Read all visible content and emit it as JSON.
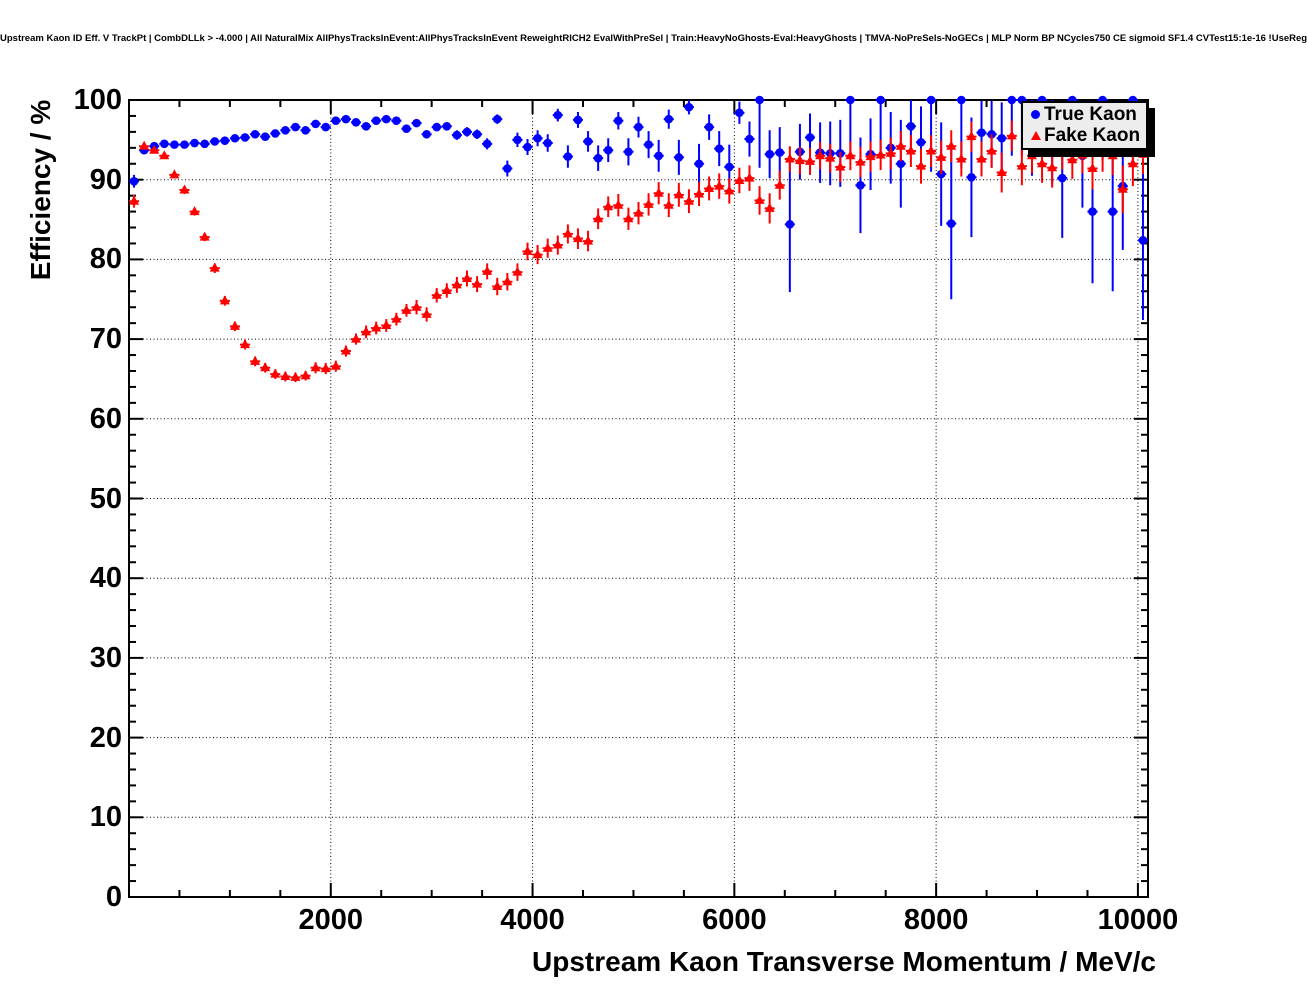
{
  "title": "Upstream Kaon ID Eff. V TrackPt | CombDLLk > -4.000 | All NaturalMix AllPhysTracksInEvent:AllPhysTracksInEvent ReweightRICH2 EvalWithPreSel | Train:HeavyNoGhosts-Eval:HeavyGhosts | TMVA-NoPreSels-NoGECs | MLP Norm BP NCycles750 CE sigmoid SF1.4 CVTest15:1e-16 !UseReg",
  "legend": {
    "items": [
      {
        "label": "True Kaon",
        "marker": "circle",
        "color": "#0000ff"
      },
      {
        "label": "Fake Kaon",
        "marker": "triangle",
        "color": "#ff0000"
      }
    ]
  },
  "colors": {
    "true_kaon": "#0000ff",
    "fake_kaon": "#ff0000",
    "axis": "#000000",
    "legend_bg": "#ededed"
  },
  "chart_data": {
    "type": "scatter",
    "title": "Upstream Kaon ID Eff. V TrackPt | CombDLLk > -4.000 | All NaturalMix AllPhysTracksInEvent:AllPhysTracksInEvent ReweightRICH2 EvalWithPreSel | Train:HeavyNoGhosts-Eval:HeavyGhosts | TMVA-NoPreSels-NoGECs | MLP Norm BP NCycles750 CE sigmoid SF1.4 CVTest15:1e-16 !UseReg",
    "xlabel": "Upstream Kaon Transverse Momentum / MeV/c",
    "ylabel": "Efficiency / %",
    "xlim": [
      0,
      10100
    ],
    "ylim": [
      0,
      100
    ],
    "x_major_ticks": [
      2000,
      4000,
      6000,
      8000,
      10000
    ],
    "x_minor_step": 500,
    "y_major_ticks": [
      0,
      10,
      20,
      30,
      40,
      50,
      60,
      70,
      80,
      90,
      100
    ],
    "y_minor_step": 2,
    "grid": "dotted",
    "legend_position": "top-right",
    "x_bin_halfwidth": 50,
    "series": [
      {
        "name": "True Kaon",
        "color": "#0000ff",
        "marker": "circle",
        "points_format": [
          "pt_mev",
          "efficiency_pct",
          "error_pct"
        ],
        "points": [
          [
            50,
            89.8,
            0.8
          ],
          [
            150,
            93.7,
            0.4
          ],
          [
            250,
            94.2,
            0.3
          ],
          [
            350,
            94.5,
            0.3
          ],
          [
            450,
            94.4,
            0.3
          ],
          [
            550,
            94.4,
            0.3
          ],
          [
            650,
            94.6,
            0.3
          ],
          [
            750,
            94.5,
            0.3
          ],
          [
            850,
            94.8,
            0.3
          ],
          [
            950,
            94.9,
            0.3
          ],
          [
            1050,
            95.2,
            0.3
          ],
          [
            1150,
            95.3,
            0.3
          ],
          [
            1250,
            95.7,
            0.3
          ],
          [
            1350,
            95.4,
            0.3
          ],
          [
            1450,
            95.8,
            0.3
          ],
          [
            1550,
            96.2,
            0.3
          ],
          [
            1650,
            96.6,
            0.3
          ],
          [
            1750,
            96.2,
            0.3
          ],
          [
            1850,
            97.0,
            0.3
          ],
          [
            1950,
            96.6,
            0.3
          ],
          [
            2050,
            97.4,
            0.3
          ],
          [
            2150,
            97.6,
            0.3
          ],
          [
            2250,
            97.2,
            0.4
          ],
          [
            2350,
            96.7,
            0.4
          ],
          [
            2450,
            97.4,
            0.4
          ],
          [
            2550,
            97.6,
            0.4
          ],
          [
            2650,
            97.4,
            0.4
          ],
          [
            2750,
            96.4,
            0.5
          ],
          [
            2850,
            97.1,
            0.5
          ],
          [
            2950,
            95.7,
            0.5
          ],
          [
            3050,
            96.6,
            0.5
          ],
          [
            3150,
            96.7,
            0.5
          ],
          [
            3250,
            95.6,
            0.6
          ],
          [
            3350,
            96.0,
            0.6
          ],
          [
            3450,
            95.7,
            0.6
          ],
          [
            3550,
            94.5,
            0.7
          ],
          [
            3650,
            97.6,
            0.6
          ],
          [
            3750,
            91.4,
            1.0
          ],
          [
            3850,
            95.0,
            0.9
          ],
          [
            3950,
            94.1,
            1.0
          ],
          [
            4050,
            95.2,
            1.0
          ],
          [
            4150,
            94.6,
            1.1
          ],
          [
            4250,
            98.1,
            0.8
          ],
          [
            4350,
            92.9,
            1.4
          ],
          [
            4450,
            97.5,
            1.0
          ],
          [
            4550,
            94.8,
            1.3
          ],
          [
            4650,
            92.7,
            1.6
          ],
          [
            4750,
            93.7,
            1.5
          ],
          [
            4850,
            97.4,
            1.1
          ],
          [
            4950,
            93.5,
            1.7
          ],
          [
            5050,
            96.6,
            1.3
          ],
          [
            5150,
            94.4,
            1.7
          ],
          [
            5250,
            93.0,
            2.0
          ],
          [
            5350,
            97.6,
            1.2
          ],
          [
            5450,
            92.8,
            2.2
          ],
          [
            5550,
            99.1,
            0.9
          ],
          [
            5650,
            92.0,
            2.5
          ],
          [
            5750,
            96.6,
            1.6
          ],
          [
            5850,
            93.9,
            2.2
          ],
          [
            5950,
            91.6,
            2.8
          ],
          [
            6050,
            98.4,
            1.4
          ],
          [
            6150,
            95.1,
            2.2
          ],
          [
            6250,
            100,
            8.5
          ],
          [
            6350,
            93.2,
            3.0
          ],
          [
            6450,
            93.4,
            3.2
          ],
          [
            6550,
            84.4,
            8.5
          ],
          [
            6650,
            93.5,
            3.5
          ],
          [
            6750,
            95.3,
            3.0
          ],
          [
            6850,
            93.4,
            3.8
          ],
          [
            6950,
            93.3,
            4.0
          ],
          [
            7050,
            93.3,
            4.2
          ],
          [
            7150,
            100,
            7.0
          ],
          [
            7250,
            89.3,
            6.0
          ],
          [
            7350,
            93.2,
            4.5
          ],
          [
            7450,
            100,
            7.0
          ],
          [
            7550,
            94.0,
            4.5
          ],
          [
            7650,
            92.0,
            5.5
          ],
          [
            7750,
            96.7,
            3.5
          ],
          [
            7850,
            94.7,
            4.5
          ],
          [
            7950,
            100,
            9.0
          ],
          [
            8050,
            90.7,
            6.5
          ],
          [
            8150,
            84.5,
            9.5
          ],
          [
            8250,
            100,
            8.5
          ],
          [
            8350,
            90.3,
            7.5
          ],
          [
            8450,
            95.9,
            4.0
          ],
          [
            8550,
            95.7,
            4.2
          ],
          [
            8650,
            95.2,
            4.5
          ],
          [
            8750,
            100,
            7.0
          ],
          [
            8850,
            100,
            7.0
          ],
          [
            8950,
            95.5,
            5.0
          ],
          [
            9050,
            100,
            7.0
          ],
          [
            9150,
            95.0,
            5.5
          ],
          [
            9250,
            90.2,
            7.5
          ],
          [
            9350,
            100,
            7.0
          ],
          [
            9450,
            93.0,
            6.5
          ],
          [
            9550,
            86.0,
            9.0
          ],
          [
            9650,
            100,
            7.5
          ],
          [
            9750,
            86.0,
            10.0
          ],
          [
            9850,
            89.2,
            8.0
          ],
          [
            9950,
            100,
            8.0
          ],
          [
            10050,
            82.4,
            10.0
          ]
        ]
      },
      {
        "name": "Fake Kaon",
        "color": "#ff0000",
        "marker": "triangle",
        "points_format": [
          "pt_mev",
          "efficiency_pct",
          "error_pct"
        ],
        "points": [
          [
            50,
            87.3,
            0.8
          ],
          [
            150,
            94.2,
            0.4
          ],
          [
            250,
            93.7,
            0.4
          ],
          [
            350,
            93.0,
            0.4
          ],
          [
            450,
            90.6,
            0.4
          ],
          [
            550,
            88.7,
            0.5
          ],
          [
            650,
            86.0,
            0.5
          ],
          [
            750,
            82.8,
            0.5
          ],
          [
            850,
            78.9,
            0.6
          ],
          [
            950,
            74.8,
            0.6
          ],
          [
            1050,
            71.6,
            0.6
          ],
          [
            1150,
            69.3,
            0.6
          ],
          [
            1250,
            67.2,
            0.6
          ],
          [
            1350,
            66.4,
            0.6
          ],
          [
            1450,
            65.6,
            0.6
          ],
          [
            1550,
            65.3,
            0.6
          ],
          [
            1650,
            65.2,
            0.6
          ],
          [
            1750,
            65.4,
            0.6
          ],
          [
            1850,
            66.4,
            0.7
          ],
          [
            1950,
            66.3,
            0.7
          ],
          [
            2050,
            66.6,
            0.7
          ],
          [
            2150,
            68.5,
            0.7
          ],
          [
            2250,
            70.0,
            0.7
          ],
          [
            2350,
            70.9,
            0.8
          ],
          [
            2450,
            71.4,
            0.8
          ],
          [
            2550,
            71.7,
            0.8
          ],
          [
            2650,
            72.5,
            0.8
          ],
          [
            2750,
            73.6,
            0.8
          ],
          [
            2850,
            74.0,
            0.9
          ],
          [
            2950,
            73.1,
            0.9
          ],
          [
            3050,
            75.5,
            0.9
          ],
          [
            3150,
            76.1,
            0.9
          ],
          [
            3250,
            76.8,
            1.0
          ],
          [
            3350,
            77.6,
            1.0
          ],
          [
            3450,
            76.9,
            1.0
          ],
          [
            3550,
            78.5,
            1.0
          ],
          [
            3650,
            76.6,
            1.1
          ],
          [
            3750,
            77.2,
            1.1
          ],
          [
            3850,
            78.4,
            1.1
          ],
          [
            3950,
            81.0,
            1.1
          ],
          [
            4050,
            80.6,
            1.2
          ],
          [
            4150,
            81.4,
            1.2
          ],
          [
            4250,
            81.8,
            1.2
          ],
          [
            4350,
            83.2,
            1.2
          ],
          [
            4450,
            82.6,
            1.3
          ],
          [
            4550,
            82.3,
            1.3
          ],
          [
            4650,
            85.1,
            1.3
          ],
          [
            4750,
            86.6,
            1.3
          ],
          [
            4850,
            86.8,
            1.4
          ],
          [
            4950,
            85.1,
            1.4
          ],
          [
            5050,
            85.8,
            1.4
          ],
          [
            5150,
            86.9,
            1.4
          ],
          [
            5250,
            88.3,
            1.4
          ],
          [
            5350,
            86.8,
            1.5
          ],
          [
            5450,
            88.1,
            1.5
          ],
          [
            5550,
            87.3,
            1.5
          ],
          [
            5650,
            88.2,
            1.5
          ],
          [
            5750,
            88.9,
            1.5
          ],
          [
            5850,
            89.2,
            1.6
          ],
          [
            5950,
            88.6,
            1.6
          ],
          [
            6050,
            89.9,
            1.6
          ],
          [
            6150,
            90.2,
            1.6
          ],
          [
            6250,
            87.4,
            1.8
          ],
          [
            6350,
            86.4,
            1.9
          ],
          [
            6450,
            89.3,
            1.8
          ],
          [
            6550,
            92.6,
            1.6
          ],
          [
            6650,
            92.4,
            1.7
          ],
          [
            6750,
            92.3,
            1.7
          ],
          [
            6850,
            93.0,
            1.7
          ],
          [
            6950,
            92.7,
            1.8
          ],
          [
            7050,
            91.6,
            1.9
          ],
          [
            7150,
            93.0,
            1.8
          ],
          [
            7250,
            92.2,
            1.9
          ],
          [
            7350,
            92.9,
            1.9
          ],
          [
            7450,
            93.1,
            1.9
          ],
          [
            7550,
            93.3,
            2.0
          ],
          [
            7650,
            94.2,
            1.9
          ],
          [
            7750,
            93.6,
            2.0
          ],
          [
            7850,
            91.7,
            2.2
          ],
          [
            7950,
            93.6,
            2.0
          ],
          [
            8050,
            92.8,
            2.1
          ],
          [
            8150,
            94.2,
            2.0
          ],
          [
            8250,
            92.6,
            2.2
          ],
          [
            8350,
            95.4,
            1.9
          ],
          [
            8450,
            92.6,
            2.2
          ],
          [
            8550,
            93.6,
            2.1
          ],
          [
            8650,
            90.9,
            2.5
          ],
          [
            8750,
            95.5,
            1.9
          ],
          [
            8850,
            91.7,
            2.4
          ],
          [
            8950,
            93.0,
            2.2
          ],
          [
            9050,
            92.0,
            2.4
          ],
          [
            9150,
            91.5,
            2.5
          ],
          [
            9250,
            93.5,
            2.2
          ],
          [
            9350,
            92.5,
            2.4
          ],
          [
            9450,
            93.1,
            2.3
          ],
          [
            9550,
            91.4,
            2.6
          ],
          [
            9650,
            93.3,
            2.3
          ],
          [
            9750,
            93.0,
            2.4
          ],
          [
            9850,
            88.8,
            3.0
          ],
          [
            9950,
            92.0,
            2.8
          ],
          [
            10050,
            93.2,
            2.5
          ]
        ]
      }
    ]
  }
}
